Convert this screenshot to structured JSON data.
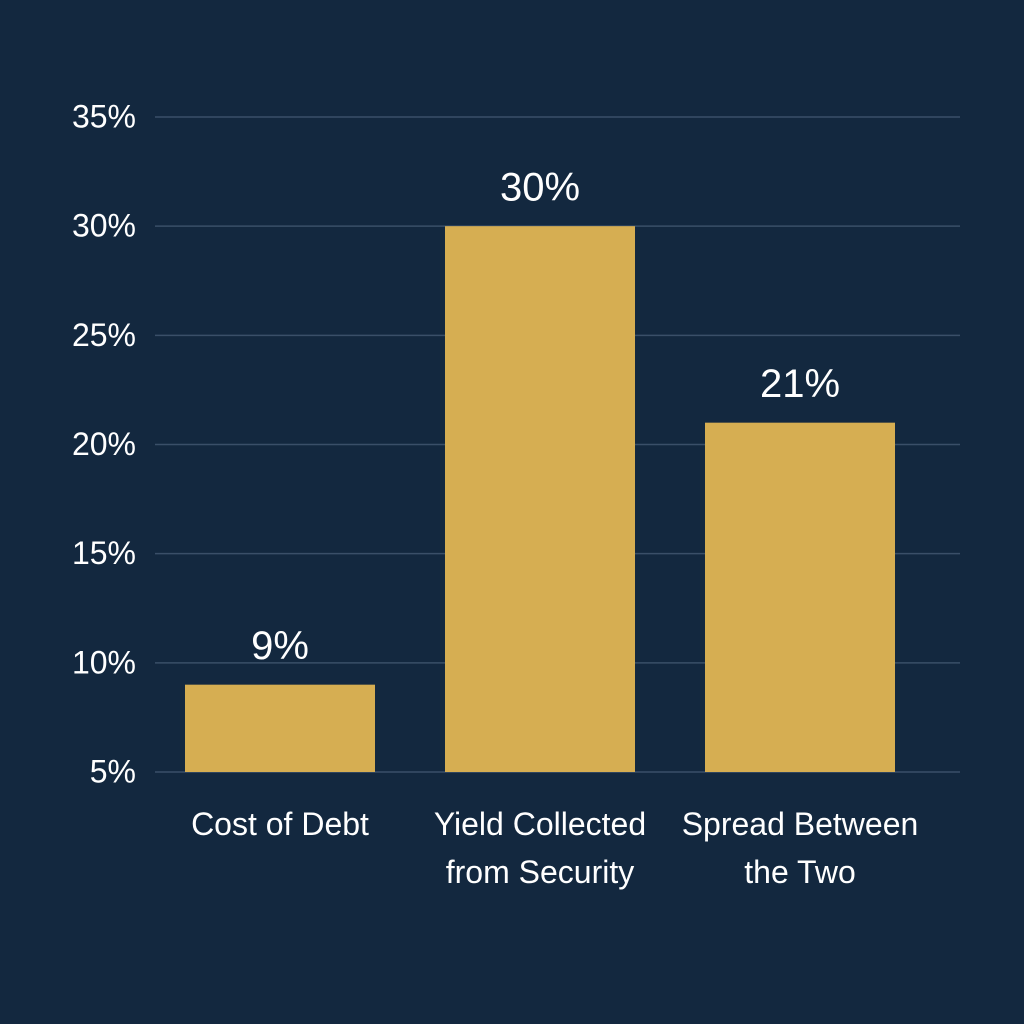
{
  "chart_data": {
    "type": "bar",
    "categories": [
      "Cost of Debt",
      "Yield Collected from Security",
      "Spread Between the Two"
    ],
    "values": [
      9,
      30,
      21
    ],
    "value_labels": [
      "9%",
      "30%",
      "21%"
    ],
    "color": "#d6ae52",
    "ylim": [
      5,
      35
    ],
    "yticks": [
      {
        "value": 5,
        "label": "5%"
      },
      {
        "value": 10,
        "label": "10%"
      },
      {
        "value": 15,
        "label": "15%"
      },
      {
        "value": 20,
        "label": "20%"
      },
      {
        "value": 25,
        "label": "25%"
      },
      {
        "value": 30,
        "label": "30%"
      },
      {
        "value": 35,
        "label": "35%"
      }
    ],
    "grid": true
  }
}
